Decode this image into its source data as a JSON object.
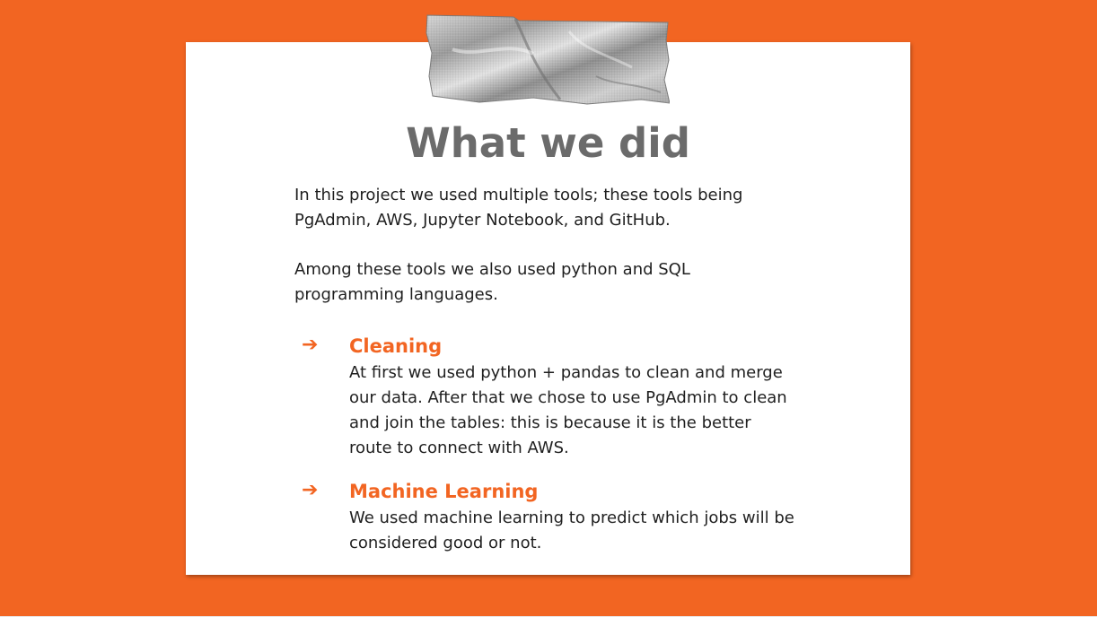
{
  "slide": {
    "title": "What we did",
    "intro_paragraphs": [
      "In this project we used multiple tools; these tools being PgAdmin, AWS, Jupyter Notebook, and GitHub.",
      "Among these tools we also used python and SQL programming languages."
    ],
    "items": [
      {
        "bullet": "➔",
        "heading": "Cleaning",
        "body": "At first we used python + pandas to clean and merge our data. After that we chose to use PgAdmin to clean and join the tables: this is because it is the better route to connect with AWS."
      },
      {
        "bullet": "➔",
        "heading": "Machine Learning",
        "body": "We used machine learning to predict which jobs will be considered good or not."
      }
    ]
  },
  "colors": {
    "background": "#f26522",
    "card": "#ffffff",
    "title": "#6b6b6b",
    "accent": "#f26522",
    "body_text": "#1f1f1f"
  },
  "icons": {
    "tape": "duct-tape-strip"
  }
}
